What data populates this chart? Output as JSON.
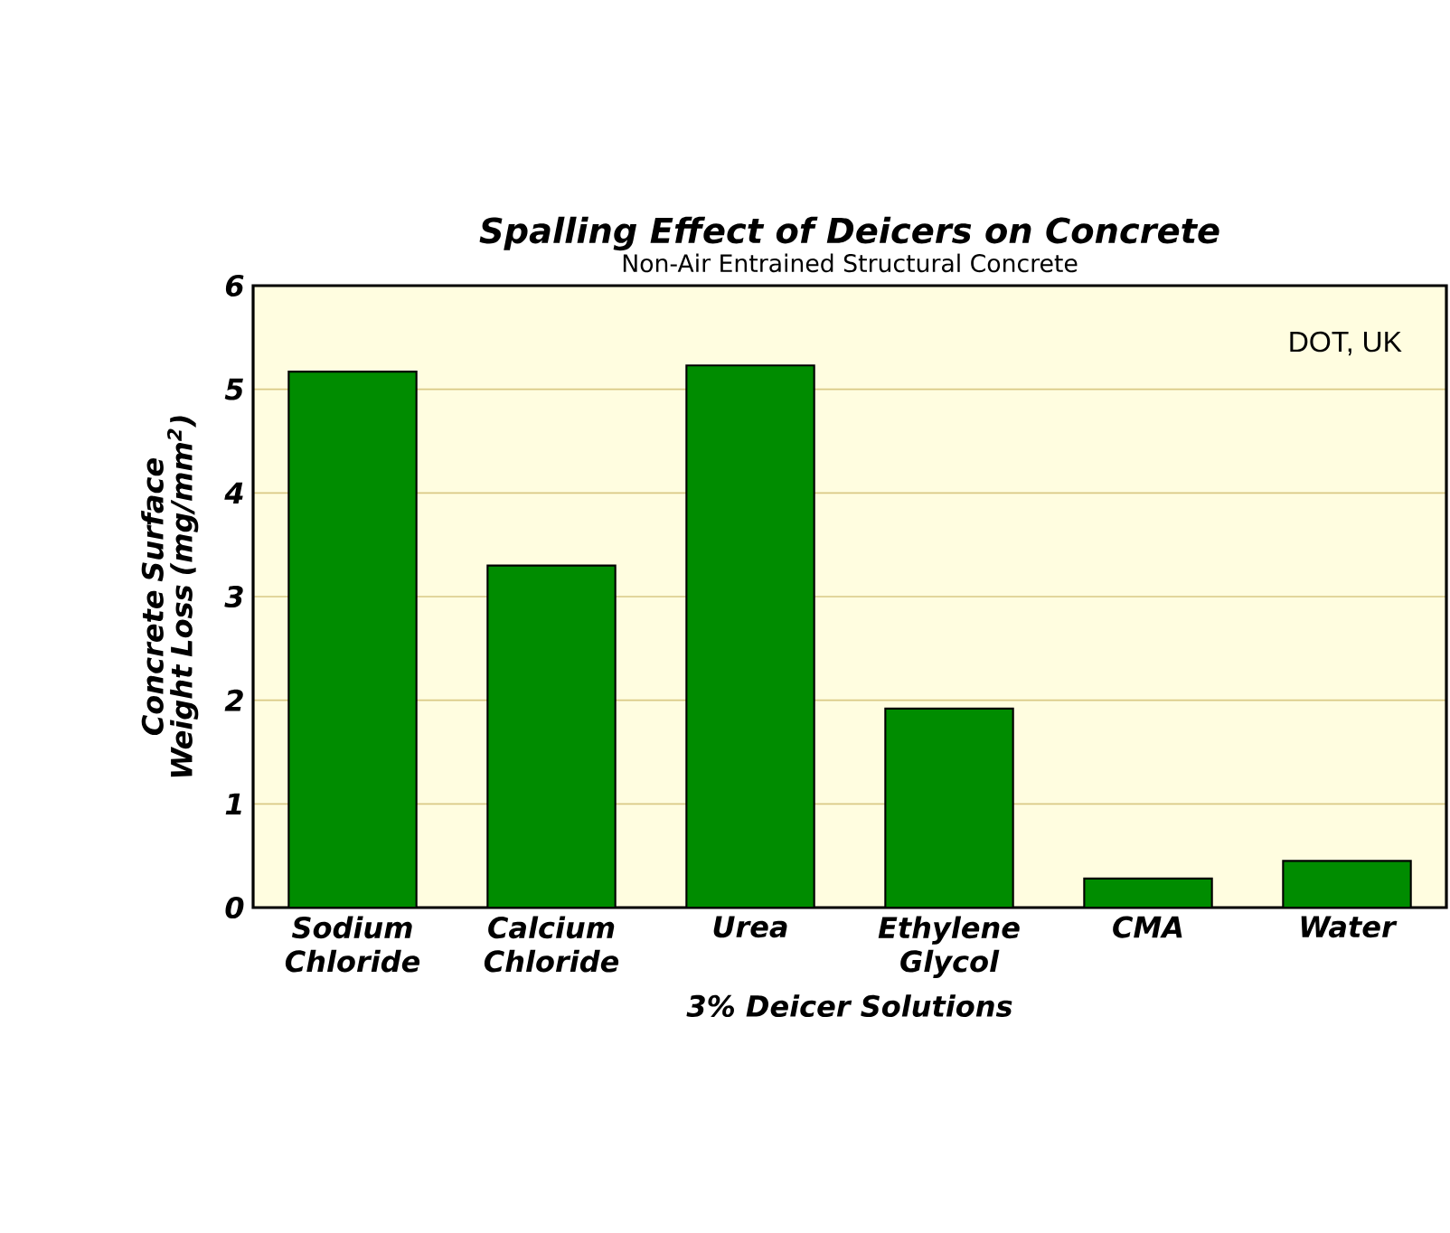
{
  "chart_data": {
    "type": "bar",
    "title": "Spalling Effect of Deicers on Concrete",
    "subtitle": "Non-Air Entrained Structural Concrete",
    "categories": [
      "Sodium Chloride",
      "Calcium Chloride",
      "Urea",
      "Ethylene Glycol",
      "CMA",
      "Water"
    ],
    "values": [
      5.17,
      3.3,
      5.23,
      1.92,
      0.28,
      0.45
    ],
    "color": "#008c00",
    "xlabel": "3% Deicer Solutions",
    "ylabel": "Concrete Surface Weight Loss (mg/mm$^{2}$)",
    "ylim": [
      0,
      6
    ],
    "yticks": [
      0,
      1,
      2,
      3,
      4,
      5,
      6
    ],
    "grid": "y",
    "annotations": [
      "DOT, UK"
    ]
  }
}
